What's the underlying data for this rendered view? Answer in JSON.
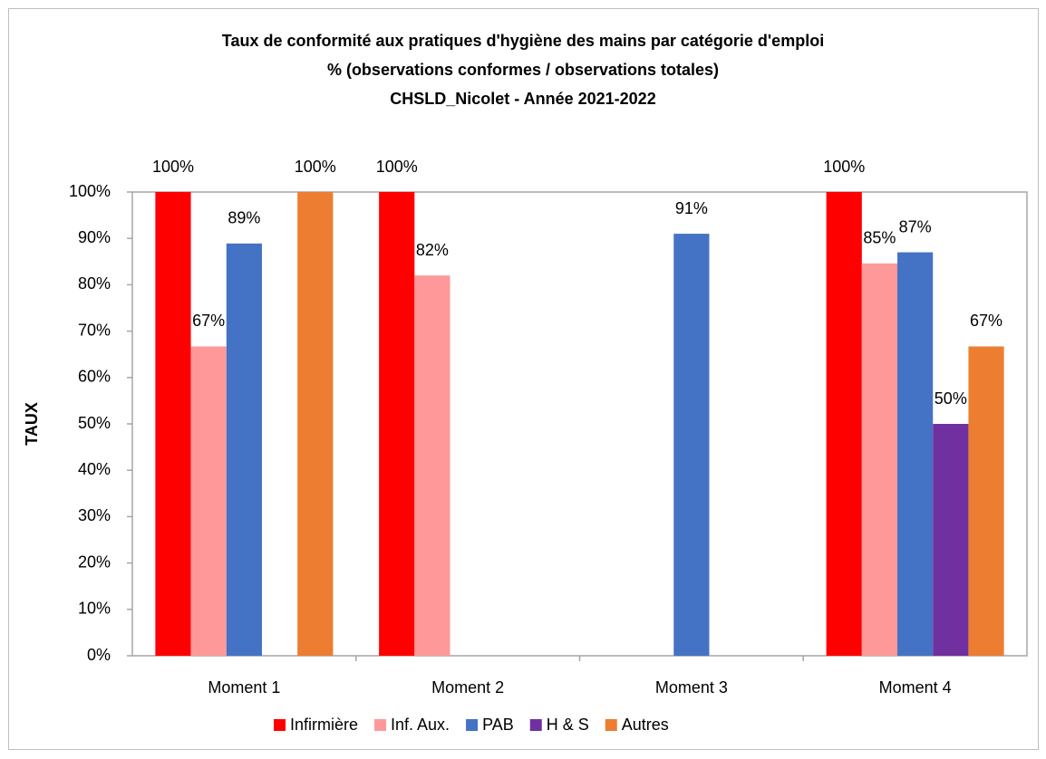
{
  "chart_data": {
    "type": "bar",
    "title": [
      "Taux de conformité aux pratiques d'hygiène des mains par catégorie d'emploi",
      "% (observations conformes / observations totales)",
      "CHSLD_Nicolet - Année 2021-2022"
    ],
    "y_label": "TAUX",
    "categories": [
      "Moment 1",
      "Moment 2",
      "Moment 3",
      "Moment 4"
    ],
    "series": [
      {
        "name": "Infirmière",
        "color": "#ff0000",
        "values": [
          100,
          100,
          null,
          100
        ],
        "value_labels": [
          "100%",
          "100%",
          null,
          "100%"
        ]
      },
      {
        "name": "Inf. Aux.",
        "color": "#ff9999",
        "values": [
          66.7,
          82,
          null,
          84.6
        ],
        "value_labels": [
          "67%",
          "82%",
          null,
          "85%"
        ]
      },
      {
        "name": "PAB",
        "color": "#4472c4",
        "values": [
          88.9,
          null,
          91,
          87
        ],
        "value_labels": [
          "89%",
          null,
          "91%",
          "87%"
        ]
      },
      {
        "name": "H & S",
        "color": "#7030a0",
        "values": [
          null,
          null,
          null,
          50
        ],
        "value_labels": [
          null,
          null,
          null,
          "50%"
        ]
      },
      {
        "name": "Autres",
        "color": "#ed7d31",
        "values": [
          100,
          null,
          null,
          66.7
        ],
        "value_labels": [
          "100%",
          null,
          null,
          "67%"
        ]
      }
    ],
    "ylim": [
      0,
      100
    ],
    "yticks": [
      {
        "value": 0,
        "label": "0%"
      },
      {
        "value": 10,
        "label": "10%"
      },
      {
        "value": 20,
        "label": "20%"
      },
      {
        "value": 30,
        "label": "30%"
      },
      {
        "value": 40,
        "label": "40%"
      },
      {
        "value": 50,
        "label": "50%"
      },
      {
        "value": 60,
        "label": "60%"
      },
      {
        "value": 70,
        "label": "70%"
      },
      {
        "value": 80,
        "label": "80%"
      },
      {
        "value": 90,
        "label": "90%"
      },
      {
        "value": 100,
        "label": "100%"
      }
    ],
    "grid": false,
    "legend": "bottom"
  }
}
